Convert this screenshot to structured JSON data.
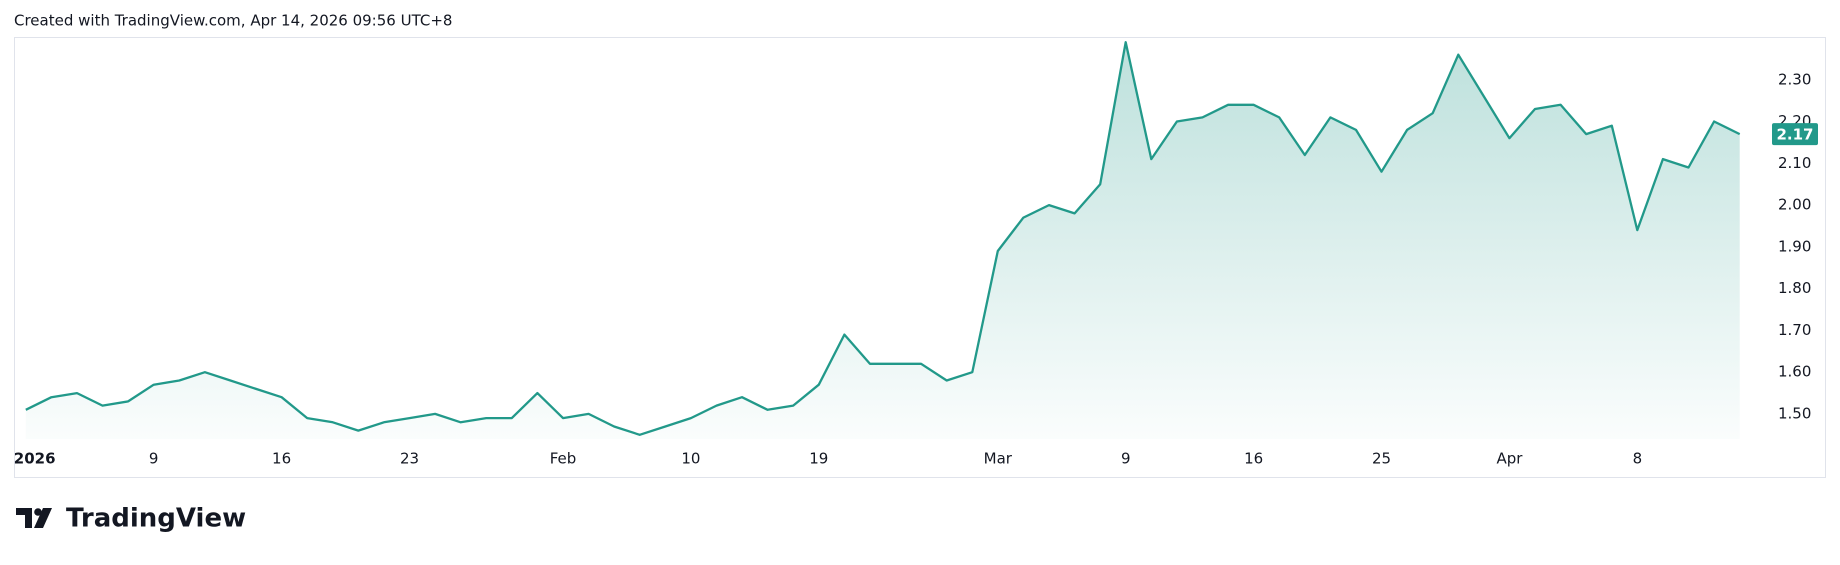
{
  "header": {
    "text": "Created with TradingView.com, Apr 14, 2026 09:56 UTC+8"
  },
  "brand": {
    "name": "TradingView"
  },
  "chart_data": {
    "type": "area",
    "color": "#22998a",
    "categories": [
      "2026",
      null,
      null,
      null,
      null,
      "9",
      null,
      null,
      null,
      null,
      "16",
      null,
      null,
      null,
      null,
      "23",
      null,
      null,
      null,
      null,
      null,
      "Feb",
      null,
      null,
      null,
      null,
      "10",
      null,
      null,
      null,
      null,
      "19",
      null,
      null,
      null,
      null,
      null,
      null,
      "Mar",
      null,
      null,
      null,
      null,
      "9",
      null,
      null,
      null,
      null,
      "16",
      null,
      null,
      null,
      null,
      "25",
      null,
      null,
      null,
      null,
      "Apr",
      null,
      null,
      null,
      null,
      "8",
      null,
      null,
      null,
      null
    ],
    "values": [
      1.51,
      1.54,
      1.55,
      1.52,
      1.53,
      1.57,
      1.58,
      1.6,
      1.58,
      1.56,
      1.54,
      1.49,
      1.48,
      1.46,
      1.48,
      1.49,
      1.5,
      1.48,
      1.49,
      1.49,
      1.55,
      1.49,
      1.5,
      1.47,
      1.45,
      1.47,
      1.49,
      1.52,
      1.54,
      1.51,
      1.52,
      1.57,
      1.69,
      1.62,
      1.62,
      1.62,
      1.58,
      1.6,
      1.89,
      1.97,
      2.0,
      1.98,
      2.05,
      2.39,
      2.11,
      2.2,
      2.21,
      2.24,
      2.24,
      2.21,
      2.12,
      2.21,
      2.18,
      2.08,
      2.18,
      2.22,
      2.36,
      2.26,
      2.16,
      2.23,
      2.24,
      2.17,
      2.19,
      1.94,
      2.11,
      2.09,
      2.2,
      2.17
    ],
    "ylim": [
      1.44,
      2.4
    ],
    "yticks": [
      {
        "value": 1.5,
        "label": "1.50"
      },
      {
        "value": 1.6,
        "label": "1.60"
      },
      {
        "value": 1.7,
        "label": "1.70"
      },
      {
        "value": 1.8,
        "label": "1.80"
      },
      {
        "value": 1.9,
        "label": "1.90"
      },
      {
        "value": 2.0,
        "label": "2.00"
      },
      {
        "value": 2.1,
        "label": "2.10"
      },
      {
        "value": 2.2,
        "label": "2.20"
      },
      {
        "value": 2.3,
        "label": "2.30"
      }
    ]
  }
}
